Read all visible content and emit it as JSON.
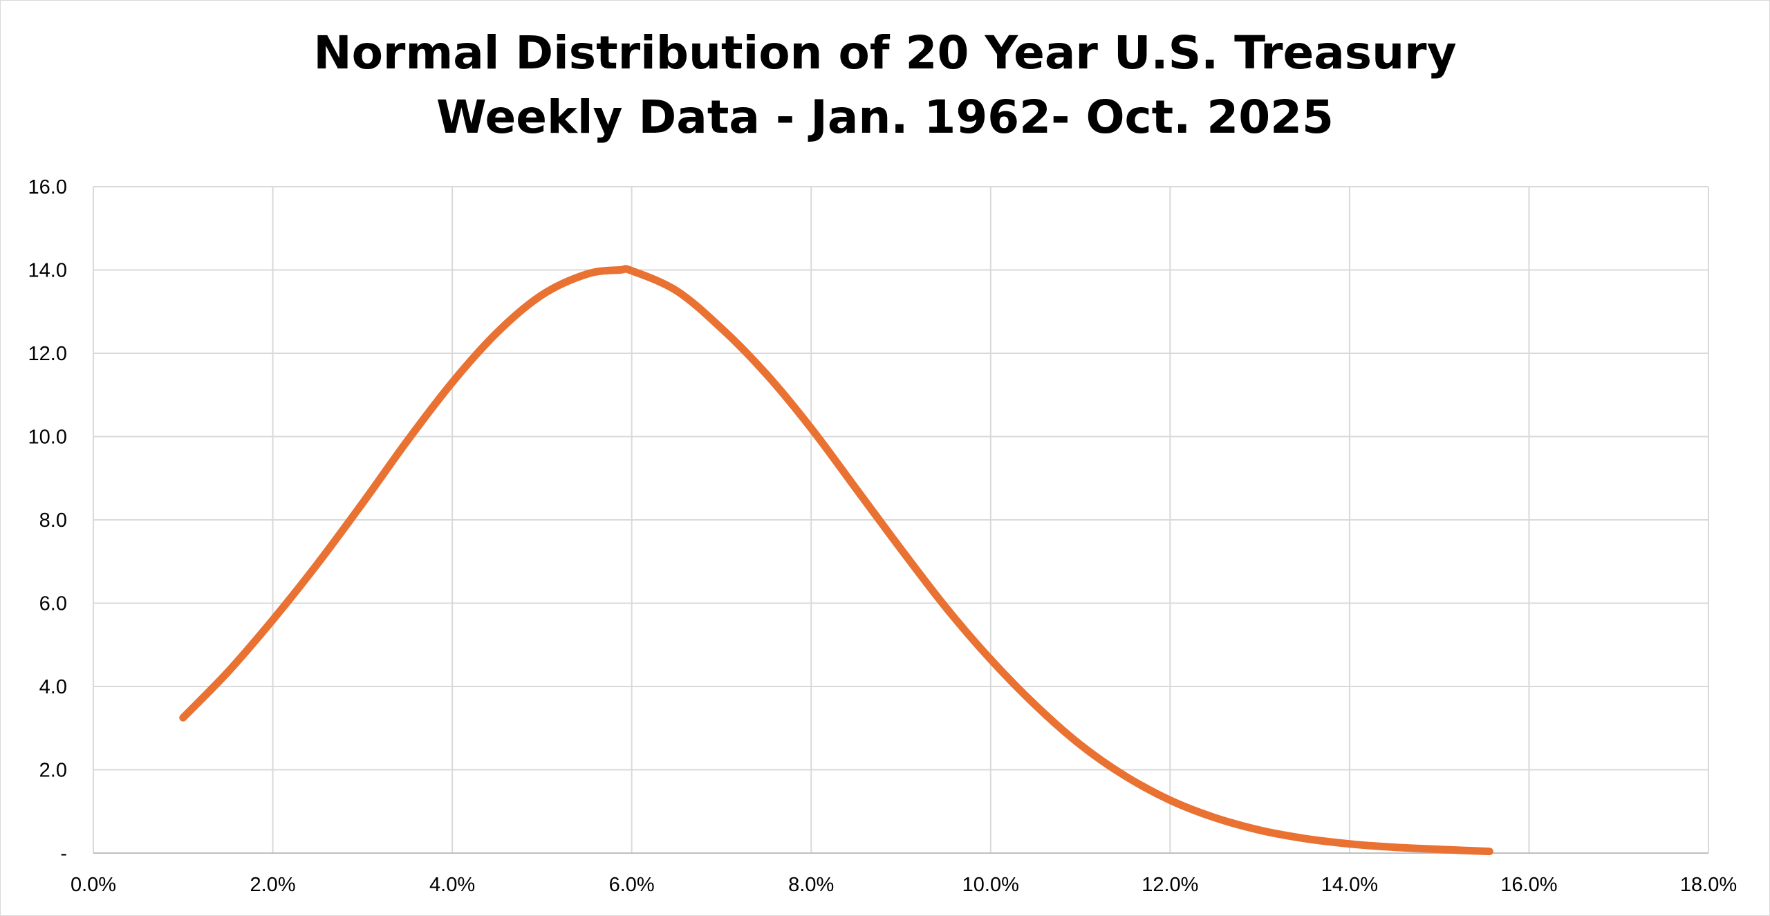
{
  "chart_data": {
    "type": "line",
    "title_lines": [
      "Normal Distribution of 20 Year U.S. Treasury",
      "Weekly Data - Jan. 1962- Oct. 2025"
    ],
    "xlabel": "",
    "ylabel": "",
    "xlim": [
      0,
      18
    ],
    "ylim": [
      0,
      16
    ],
    "x_ticks": [
      {
        "value": 0,
        "label": "0.0%"
      },
      {
        "value": 2,
        "label": "2.0%"
      },
      {
        "value": 4,
        "label": "4.0%"
      },
      {
        "value": 6,
        "label": "6.0%"
      },
      {
        "value": 8,
        "label": "8.0%"
      },
      {
        "value": 10,
        "label": "10.0%"
      },
      {
        "value": 12,
        "label": "12.0%"
      },
      {
        "value": 14,
        "label": "14.0%"
      },
      {
        "value": 16,
        "label": "16.0%"
      },
      {
        "value": 18,
        "label": "18.0%"
      }
    ],
    "y_ticks": [
      {
        "value": 0,
        "label": "-"
      },
      {
        "value": 2,
        "label": "2.0"
      },
      {
        "value": 4,
        "label": "4.0"
      },
      {
        "value": 6,
        "label": "6.0"
      },
      {
        "value": 8,
        "label": "8.0"
      },
      {
        "value": 10,
        "label": "10.0"
      },
      {
        "value": 12,
        "label": "12.0"
      },
      {
        "value": 14,
        "label": "14.0"
      },
      {
        "value": 16,
        "label": "16.0"
      }
    ],
    "grid": true,
    "legend": "none",
    "series": [
      {
        "name": "Normal distribution",
        "color": "#E97132",
        "x": [
          1.0,
          1.5,
          2.0,
          2.5,
          3.0,
          3.5,
          4.0,
          4.5,
          5.0,
          5.5,
          5.87,
          6.0,
          6.5,
          7.0,
          7.5,
          8.0,
          8.5,
          9.0,
          9.5,
          10.0,
          10.5,
          11.0,
          11.5,
          12.0,
          12.5,
          13.0,
          13.5,
          14.0,
          14.5,
          15.0,
          15.56
        ],
        "y": [
          3.25,
          4.35,
          5.6,
          6.95,
          8.4,
          9.9,
          11.3,
          12.5,
          13.4,
          13.9,
          14.0,
          13.98,
          13.5,
          12.6,
          11.5,
          10.2,
          8.75,
          7.3,
          5.9,
          4.65,
          3.55,
          2.6,
          1.85,
          1.27,
          0.85,
          0.55,
          0.35,
          0.22,
          0.14,
          0.09,
          0.04
        ]
      }
    ],
    "colors": {
      "grid": "#d9d9d9",
      "axis": "#bfbfbf",
      "text": "#000000"
    }
  }
}
